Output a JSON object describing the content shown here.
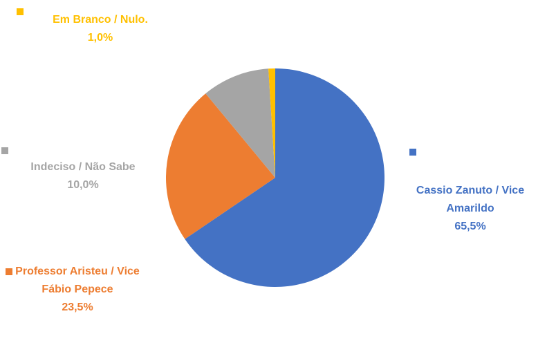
{
  "chart_data": {
    "type": "pie",
    "categories": [
      "Cassio Zanuto / Vice Amarildo",
      "Professor Aristeu / Vice Fábio Pepece",
      "Indeciso / Não Sabe",
      "Em Branco / Nulo."
    ],
    "values": [
      65.5,
      23.5,
      10.0,
      1.0
    ],
    "value_labels": [
      "65,5%",
      "23,5%",
      "10,0%",
      "1,0%"
    ],
    "colors": [
      "#4472c4",
      "#ed7d31",
      "#a5a5a5",
      "#ffc000"
    ]
  }
}
